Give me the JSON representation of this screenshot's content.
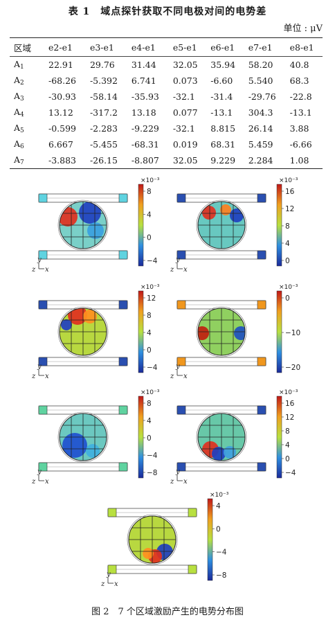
{
  "table": {
    "title": "表 1　域点探针获取不同电极对间的电势差",
    "unit": "单位 : μV",
    "header_region": "区域",
    "columns": [
      "e2-e1",
      "e3-e1",
      "e4-e1",
      "e5-e1",
      "e6-e1",
      "e7-e1",
      "e8-e1"
    ],
    "rows": [
      {
        "region": "A",
        "sub": "1",
        "values": [
          "22.91",
          "29.76",
          "31.44",
          "32.05",
          "35.94",
          "58.20",
          "40.8"
        ]
      },
      {
        "region": "A",
        "sub": "2",
        "values": [
          "-68.26",
          "-5.392",
          "6.741",
          "0.073",
          "-6.60",
          "5.540",
          "68.3"
        ]
      },
      {
        "region": "A",
        "sub": "3",
        "values": [
          "-30.93",
          "-58.14",
          "-35.93",
          "-32.1",
          "-31.4",
          "-29.76",
          "-22.8"
        ]
      },
      {
        "region": "A",
        "sub": "4",
        "values": [
          "13.12",
          "-317.2",
          "13.18",
          "0.077",
          "-13.1",
          "304.3",
          "-13.1"
        ]
      },
      {
        "region": "A",
        "sub": "5",
        "values": [
          "-0.599",
          "-2.283",
          "-9.229",
          "-32.1",
          "8.815",
          "26.14",
          "3.88"
        ]
      },
      {
        "region": "A",
        "sub": "6",
        "values": [
          "6.667",
          "-5.455",
          "-68.31",
          "0.019",
          "68.31",
          "5.459",
          "-6.66"
        ]
      },
      {
        "region": "A",
        "sub": "7",
        "values": [
          "-3.883",
          "-26.15",
          "-8.807",
          "32.05",
          "9.229",
          "2.284",
          "1.08"
        ]
      }
    ]
  },
  "figure": {
    "caption": "图 2　7 个区域激励产生的电势分布图",
    "axis_y": "y",
    "axis_zx": "z",
    "axis_x": "x",
    "panels": [
      {
        "id": "A1",
        "exponent": "×10⁻³",
        "ticks": [
          "8",
          "4",
          "0",
          "−4"
        ],
        "electrode_color": "#5fd3e0"
      },
      {
        "id": "A2",
        "exponent": "×10⁻³",
        "ticks": [
          "16",
          "12",
          "8",
          "4",
          "0"
        ],
        "electrode_color": "#2a4fb0"
      },
      {
        "id": "A3",
        "exponent": "×10⁻³",
        "ticks": [
          "12",
          "8",
          "4",
          "0",
          "−4"
        ],
        "electrode_color": "#2a4fb0"
      },
      {
        "id": "A4",
        "exponent": "×10⁻³",
        "ticks": [
          "0",
          "−10",
          "−20"
        ],
        "electrode_color": "#f0971e"
      },
      {
        "id": "A5",
        "exponent": "×10⁻³",
        "ticks": [
          "8",
          "4",
          "0",
          "−4",
          "−8"
        ],
        "electrode_color": "#5fd3a0"
      },
      {
        "id": "A6",
        "exponent": "×10⁻³",
        "ticks": [
          "16",
          "12",
          "8",
          "4",
          "0",
          "−4"
        ],
        "electrode_color": "#2a4fb0"
      },
      {
        "id": "A7",
        "exponent": "×10⁻³",
        "ticks": [
          "4",
          "0",
          "−4",
          "−8"
        ],
        "electrode_color": "#b8e040"
      }
    ]
  }
}
